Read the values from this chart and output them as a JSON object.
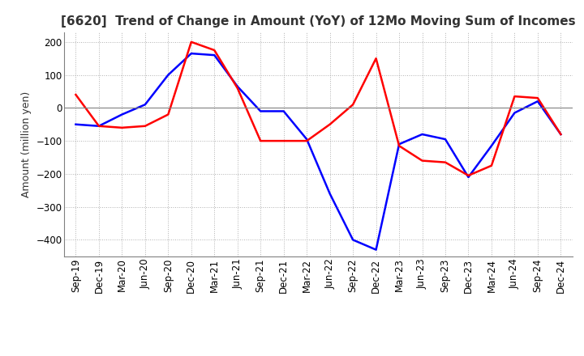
{
  "title": "[6620]  Trend of Change in Amount (YoY) of 12Mo Moving Sum of Incomes",
  "ylabel": "Amount (million yen)",
  "ylim": [
    -450,
    230
  ],
  "yticks": [
    -400,
    -300,
    -200,
    -100,
    0,
    100,
    200
  ],
  "background_color": "#ffffff",
  "grid_color": "#b0b0b0",
  "x_labels": [
    "Sep-19",
    "Dec-19",
    "Mar-20",
    "Jun-20",
    "Sep-20",
    "Dec-20",
    "Mar-21",
    "Jun-21",
    "Sep-21",
    "Dec-21",
    "Mar-22",
    "Jun-22",
    "Sep-22",
    "Dec-22",
    "Mar-23",
    "Jun-23",
    "Sep-23",
    "Dec-23",
    "Mar-24",
    "Jun-24",
    "Sep-24",
    "Dec-24"
  ],
  "ordinary_income": [
    -50,
    -55,
    -20,
    10,
    100,
    165,
    160,
    65,
    -10,
    -10,
    -95,
    -260,
    -400,
    -430,
    -110,
    -80,
    -95,
    -210,
    -115,
    -15,
    20,
    -80
  ],
  "net_income": [
    40,
    -55,
    -60,
    -55,
    -20,
    200,
    175,
    60,
    -100,
    -100,
    -100,
    -50,
    10,
    150,
    -115,
    -160,
    -165,
    -205,
    -175,
    35,
    30,
    -80
  ],
  "ordinary_color": "#0000ff",
  "net_color": "#ff0000",
  "line_width": 1.8,
  "title_fontsize": 11,
  "axis_fontsize": 9,
  "tick_fontsize": 8.5
}
